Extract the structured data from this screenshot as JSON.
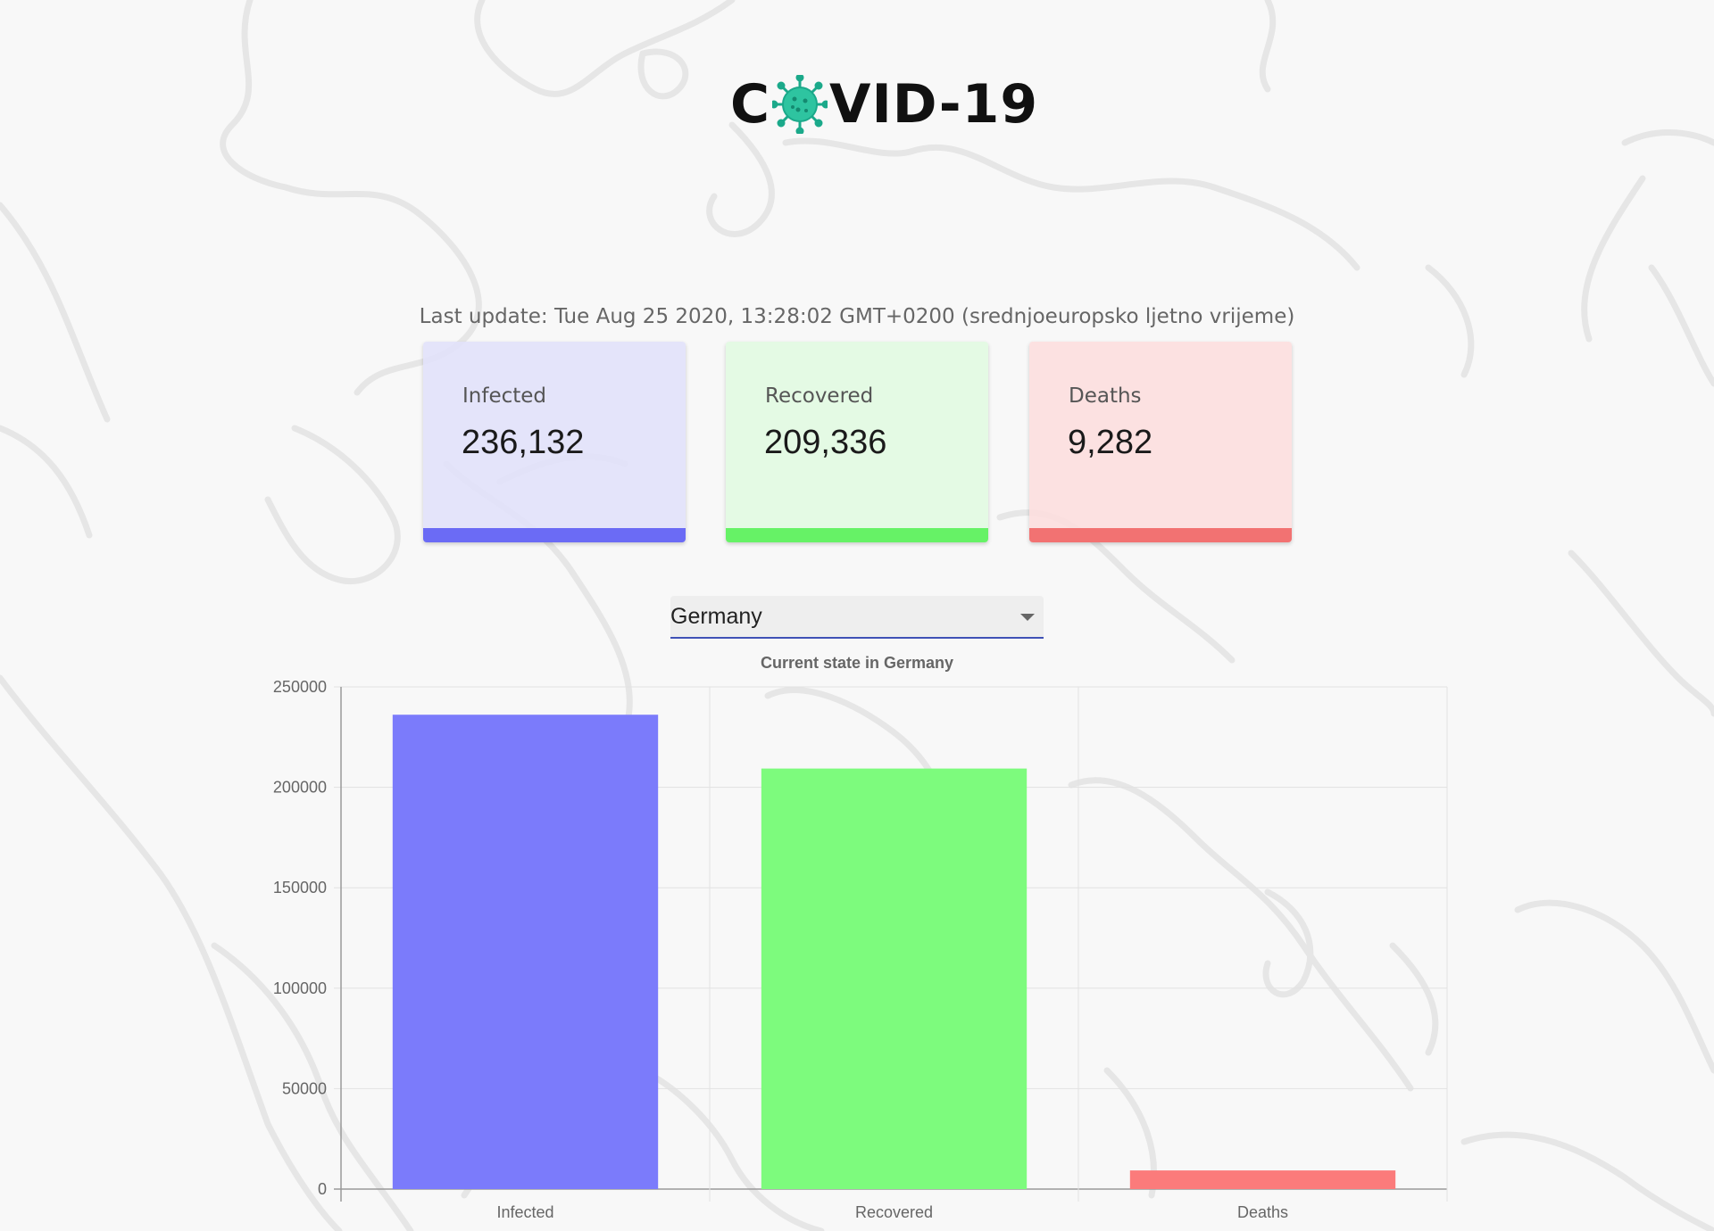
{
  "logo": {
    "text_before": "C",
    "text_after": "VID-19",
    "icon": "virus-icon"
  },
  "last_update": "Last update: Tue Aug 25 2020, 13:28:02 GMT+0200 (srednjoeuropsko ljetno vrijeme)",
  "cards": [
    {
      "label": "Infected",
      "value": "236,132",
      "color": "#6b6bf5"
    },
    {
      "label": "Recovered",
      "value": "209,336",
      "color": "#66f266"
    },
    {
      "label": "Deaths",
      "value": "9,282",
      "color": "#f27272"
    }
  ],
  "country_select": {
    "selected": "Germany",
    "icon": "chevron-down-icon"
  },
  "chart_data": {
    "type": "bar",
    "title": "Current state in Germany",
    "categories": [
      "Infected",
      "Recovered",
      "Deaths"
    ],
    "values": [
      236132,
      209336,
      9282
    ],
    "colors": [
      "#7b7bfb",
      "#7dfb7d",
      "#fb7b7b"
    ],
    "ylim": [
      0,
      250000
    ],
    "yticks": [
      0,
      50000,
      100000,
      150000,
      200000,
      250000
    ],
    "grid": true,
    "legend": "none"
  }
}
